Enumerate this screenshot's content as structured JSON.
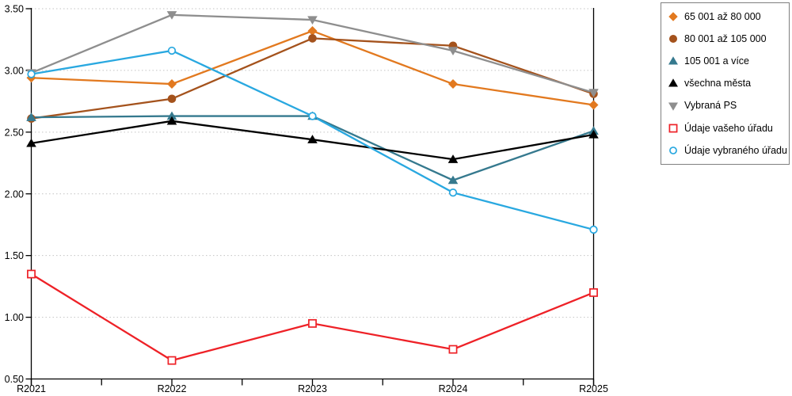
{
  "colors": {
    "background": "#ffffff",
    "axis": "#000000",
    "gridline": "#c3c3c3",
    "legend_border": "#808080",
    "text": "#000000"
  },
  "chart_data": {
    "type": "line",
    "title": "",
    "xlabel": "",
    "ylabel": "",
    "categories": [
      "R2021",
      "R2022",
      "R2023",
      "R2024",
      "R2025"
    ],
    "ylim": [
      0.5,
      3.5
    ],
    "ytick_step": 0.5,
    "yticks": [
      {
        "value": 3.5,
        "label": "3.50"
      },
      {
        "value": 3.0,
        "label": "3.00"
      },
      {
        "value": 2.5,
        "label": "2.50"
      },
      {
        "value": 2.0,
        "label": "2.00"
      },
      {
        "value": 1.5,
        "label": "1.50"
      },
      {
        "value": 1.0,
        "label": "1.00"
      },
      {
        "value": 0.5,
        "label": "0.50"
      }
    ],
    "grid": "horizontal-dotted",
    "legend_position": "right",
    "series": [
      {
        "name": "65 001 až 80 000",
        "marker": "diamond",
        "fill": "solid",
        "color": "#e2791f",
        "values": [
          2.94,
          2.89,
          3.32,
          2.89,
          2.72
        ]
      },
      {
        "name": "80 001 až 105 000",
        "marker": "circle",
        "fill": "solid",
        "color": "#a4521c",
        "values": [
          2.61,
          2.77,
          3.26,
          3.2,
          2.81
        ]
      },
      {
        "name": "105 001 a více",
        "marker": "triangle-up",
        "fill": "solid",
        "color": "#35798e",
        "values": [
          2.62,
          2.63,
          2.63,
          2.11,
          2.51
        ]
      },
      {
        "name": "všechna města",
        "marker": "triangle-up",
        "fill": "solid",
        "color": "#000000",
        "values": [
          2.41,
          2.59,
          2.44,
          2.28,
          2.48
        ]
      },
      {
        "name": "Vybraná PS",
        "marker": "triangle-down",
        "fill": "solid",
        "color": "#8e8e8e",
        "values": [
          2.98,
          3.45,
          3.41,
          3.16,
          2.82
        ]
      },
      {
        "name": "Údaje vašeho úřadu",
        "marker": "square",
        "fill": "open",
        "color": "#ee2127",
        "values": [
          1.35,
          0.65,
          0.95,
          0.74,
          1.2
        ]
      },
      {
        "name": "Údaje vybraného úřadu",
        "marker": "circle",
        "fill": "open",
        "color": "#29a8e0",
        "values": [
          2.97,
          3.16,
          2.63,
          2.01,
          1.71
        ]
      }
    ]
  }
}
